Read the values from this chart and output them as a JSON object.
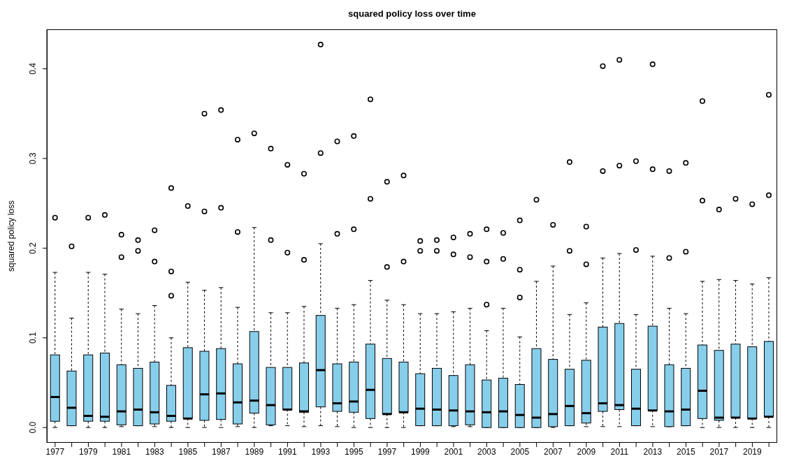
{
  "chart_data": {
    "type": "box",
    "title": "squared policy loss over time",
    "ylabel": "squared policy loss",
    "color": "#87ceeb",
    "categories": [
      "1977",
      null,
      "1979",
      null,
      "1981",
      null,
      "1983",
      null,
      "1985",
      null,
      "1987",
      null,
      "1989",
      null,
      "1991",
      null,
      "1993",
      null,
      "1995",
      null,
      "1997",
      null,
      "1999",
      null,
      "2001",
      null,
      "2003",
      null,
      "2005",
      null,
      "2007",
      null,
      "2009",
      null,
      "2011",
      null,
      "2013",
      null,
      "2015",
      null,
      "2017",
      null,
      "2019",
      null
    ],
    "ylim": [
      -0.017,
      0.444
    ],
    "yticks": [
      {
        "value": 0,
        "label": "0.0"
      },
      0.1,
      0.2,
      0.3,
      0.4
    ],
    "grid": false,
    "legend": false,
    "boxes": [
      {
        "low": 0.0,
        "q1": 0.007,
        "median": 0.034,
        "q3": 0.081,
        "high": 0.173,
        "outliers": [
          0.234
        ]
      },
      {
        "low": 0.002,
        "q1": 0.002,
        "median": 0.022,
        "q3": 0.063,
        "high": 0.122,
        "outliers": [
          0.202
        ]
      },
      {
        "low": 0.0,
        "q1": 0.007,
        "median": 0.013,
        "q3": 0.081,
        "high": 0.173,
        "outliers": [
          0.234
        ]
      },
      {
        "low": 0.0,
        "q1": 0.007,
        "median": 0.012,
        "q3": 0.083,
        "high": 0.171,
        "outliers": [
          0.237
        ]
      },
      {
        "low": 0.001,
        "q1": 0.003,
        "median": 0.018,
        "q3": 0.07,
        "high": 0.132,
        "outliers": [
          0.215,
          0.19
        ]
      },
      {
        "low": 0.002,
        "q1": 0.002,
        "median": 0.02,
        "q3": 0.066,
        "high": 0.127,
        "outliers": [
          0.209,
          0.197
        ]
      },
      {
        "low": 0.001,
        "q1": 0.004,
        "median": 0.017,
        "q3": 0.073,
        "high": 0.136,
        "outliers": [
          0.22,
          0.185
        ]
      },
      {
        "low": 0.0,
        "q1": 0.007,
        "median": 0.013,
        "q3": 0.047,
        "high": 0.1,
        "outliers": [
          0.267,
          0.174,
          0.147
        ]
      },
      {
        "low": 0.0,
        "q1": 0.01,
        "median": 0.01,
        "q3": 0.089,
        "high": 0.162,
        "outliers": [
          0.247
        ]
      },
      {
        "low": 0.0,
        "q1": 0.008,
        "median": 0.037,
        "q3": 0.085,
        "high": 0.153,
        "outliers": [
          0.35,
          0.241
        ]
      },
      {
        "low": 0.0,
        "q1": 0.009,
        "median": 0.038,
        "q3": 0.088,
        "high": 0.156,
        "outliers": [
          0.354,
          0.245
        ]
      },
      {
        "low": 0.001,
        "q1": 0.004,
        "median": 0.028,
        "q3": 0.071,
        "high": 0.134,
        "outliers": [
          0.321,
          0.218
        ]
      },
      {
        "low": 0.0,
        "q1": 0.016,
        "median": 0.03,
        "q3": 0.107,
        "high": 0.223,
        "outliers": [
          0.328
        ]
      },
      {
        "low": 0.002,
        "q1": 0.003,
        "median": 0.025,
        "q3": 0.067,
        "high": 0.128,
        "outliers": [
          0.311,
          0.209
        ]
      },
      {
        "low": 0.002,
        "q1": 0.02,
        "median": 0.02,
        "q3": 0.067,
        "high": 0.128,
        "outliers": [
          0.293,
          0.195
        ]
      },
      {
        "low": 0.001,
        "q1": 0.017,
        "median": 0.018,
        "q3": 0.072,
        "high": 0.135,
        "outliers": [
          0.283,
          0.187
        ]
      },
      {
        "low": 0.002,
        "q1": 0.023,
        "median": 0.064,
        "q3": 0.125,
        "high": 0.205,
        "outliers": [
          0.427,
          0.306
        ]
      },
      {
        "low": 0.001,
        "q1": 0.018,
        "median": 0.027,
        "q3": 0.071,
        "high": 0.133,
        "outliers": [
          0.319,
          0.216
        ]
      },
      {
        "low": 0.0,
        "q1": 0.017,
        "median": 0.029,
        "q3": 0.073,
        "high": 0.137,
        "outliers": [
          0.325,
          0.221
        ]
      },
      {
        "low": 0.0,
        "q1": 0.01,
        "median": 0.042,
        "q3": 0.093,
        "high": 0.164,
        "outliers": [
          0.366,
          0.255
        ]
      },
      {
        "low": 0.0,
        "q1": 0.015,
        "median": 0.015,
        "q3": 0.077,
        "high": 0.142,
        "outliers": [
          0.274,
          0.179
        ]
      },
      {
        "low": 0.0,
        "q1": 0.017,
        "median": 0.017,
        "q3": 0.073,
        "high": 0.137,
        "outliers": [
          0.281,
          0.185
        ]
      },
      {
        "low": 0.002,
        "q1": 0.002,
        "median": 0.021,
        "q3": 0.06,
        "high": 0.127,
        "outliers": [
          0.208,
          0.197
        ]
      },
      {
        "low": 0.002,
        "q1": 0.002,
        "median": 0.02,
        "q3": 0.066,
        "high": 0.127,
        "outliers": [
          0.209,
          0.197
        ]
      },
      {
        "low": 0.001,
        "q1": 0.002,
        "median": 0.019,
        "q3": 0.058,
        "high": 0.129,
        "outliers": [
          0.212,
          0.193
        ]
      },
      {
        "low": 0.001,
        "q1": 0.003,
        "median": 0.018,
        "q3": 0.07,
        "high": 0.133,
        "outliers": [
          0.216,
          0.19
        ]
      },
      {
        "low": 0.0,
        "q1": 0.0,
        "median": 0.017,
        "q3": 0.053,
        "high": 0.108,
        "outliers": [
          0.221,
          0.185,
          0.137
        ]
      },
      {
        "low": 0.0,
        "q1": 0.0,
        "median": 0.018,
        "q3": 0.055,
        "high": 0.133,
        "outliers": [
          0.217,
          0.188
        ]
      },
      {
        "low": 0.0,
        "q1": 0.0,
        "median": 0.014,
        "q3": 0.048,
        "high": 0.101,
        "outliers": [
          0.231,
          0.176,
          0.145
        ]
      },
      {
        "low": 0.0,
        "q1": 0.0,
        "median": 0.011,
        "q3": 0.088,
        "high": 0.163,
        "outliers": [
          0.254
        ]
      },
      {
        "low": 0.0,
        "q1": 0.001,
        "median": 0.015,
        "q3": 0.076,
        "high": 0.18,
        "outliers": [
          0.226
        ]
      },
      {
        "low": 0.002,
        "q1": 0.002,
        "median": 0.024,
        "q3": 0.065,
        "high": 0.126,
        "outliers": [
          0.296,
          0.197
        ]
      },
      {
        "low": 0.001,
        "q1": 0.005,
        "median": 0.016,
        "q3": 0.075,
        "high": 0.139,
        "outliers": [
          0.224,
          0.182
        ]
      },
      {
        "low": 0.001,
        "q1": 0.018,
        "median": 0.027,
        "q3": 0.112,
        "high": 0.189,
        "outliers": [
          0.403,
          0.286
        ]
      },
      {
        "low": 0.001,
        "q1": 0.02,
        "median": 0.025,
        "q3": 0.116,
        "high": 0.194,
        "outliers": [
          0.41,
          0.292
        ]
      },
      {
        "low": 0.002,
        "q1": 0.002,
        "median": 0.021,
        "q3": 0.065,
        "high": 0.126,
        "outliers": [
          0.297,
          0.198
        ]
      },
      {
        "low": 0.001,
        "q1": 0.019,
        "median": 0.019,
        "q3": 0.113,
        "high": 0.191,
        "outliers": [
          0.405,
          0.288
        ]
      },
      {
        "low": 0.001,
        "q1": 0.001,
        "median": 0.018,
        "q3": 0.07,
        "high": 0.133,
        "outliers": [
          0.286,
          0.189
        ]
      },
      {
        "low": 0.002,
        "q1": 0.002,
        "median": 0.02,
        "q3": 0.066,
        "high": 0.127,
        "outliers": [
          0.295,
          0.196
        ]
      },
      {
        "low": 0.0,
        "q1": 0.01,
        "median": 0.041,
        "q3": 0.092,
        "high": 0.163,
        "outliers": [
          0.364,
          0.253
        ]
      },
      {
        "low": 0.0,
        "q1": 0.008,
        "median": 0.011,
        "q3": 0.086,
        "high": 0.165,
        "outliers": [
          0.243
        ]
      },
      {
        "low": 0.0,
        "q1": 0.011,
        "median": 0.011,
        "q3": 0.093,
        "high": 0.164,
        "outliers": [
          0.255
        ]
      },
      {
        "low": 0.0,
        "q1": 0.01,
        "median": 0.01,
        "q3": 0.09,
        "high": 0.16,
        "outliers": [
          0.249
        ]
      },
      {
        "low": 0.0,
        "q1": 0.012,
        "median": 0.012,
        "q3": 0.096,
        "high": 0.167,
        "outliers": [
          0.371,
          0.259
        ]
      }
    ]
  }
}
